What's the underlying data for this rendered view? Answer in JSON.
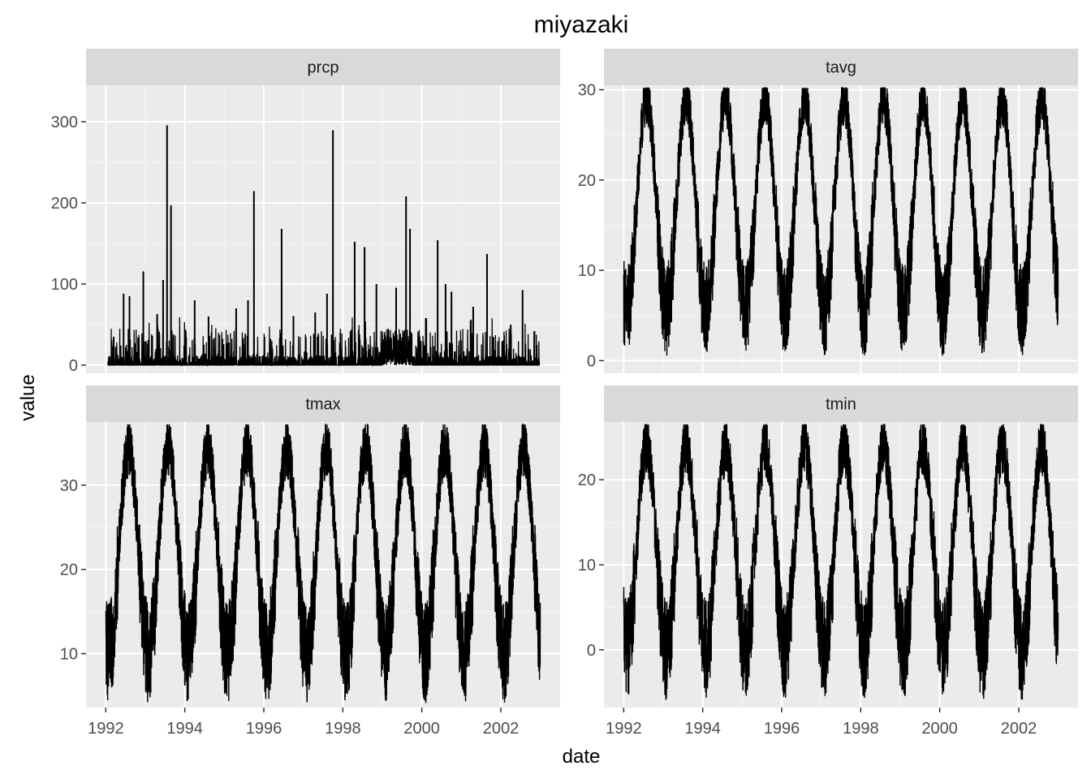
{
  "chart_data": {
    "type": "line",
    "title": "miyazaki",
    "xlabel": "date",
    "ylabel": "value",
    "x_tick_labels": [
      "1992",
      "1994",
      "1996",
      "1998",
      "2000",
      "2002"
    ],
    "x_ticks": [
      1992,
      1994,
      1996,
      1998,
      2000,
      2002
    ],
    "xlim": [
      1991.5,
      2003.5
    ],
    "facets": [
      {
        "name": "prcp",
        "ylim": [
          -10,
          345
        ],
        "y_ticks": [
          0,
          100,
          200,
          300
        ],
        "y_tick_labels": [
          "0",
          "100",
          "200",
          "300"
        ],
        "peaks": [
          [
            1992.2,
            35
          ],
          [
            1992.45,
            88
          ],
          [
            1992.6,
            85
          ],
          [
            1992.95,
            115
          ],
          [
            1993.3,
            63
          ],
          [
            1993.45,
            105
          ],
          [
            1993.55,
            295
          ],
          [
            1993.65,
            197
          ],
          [
            1994.25,
            80
          ],
          [
            1994.6,
            60
          ],
          [
            1995.3,
            70
          ],
          [
            1995.6,
            80
          ],
          [
            1995.75,
            214
          ],
          [
            1996.45,
            168
          ],
          [
            1996.75,
            60
          ],
          [
            1997.3,
            65
          ],
          [
            1997.6,
            88
          ],
          [
            1997.75,
            289
          ],
          [
            1998.3,
            152
          ],
          [
            1998.55,
            145
          ],
          [
            1998.85,
            100
          ],
          [
            1999.35,
            95
          ],
          [
            1999.6,
            208
          ],
          [
            1999.7,
            168
          ],
          [
            2000.4,
            154
          ],
          [
            2000.6,
            100
          ],
          [
            2000.75,
            90
          ],
          [
            2001.3,
            72
          ],
          [
            2001.65,
            137
          ],
          [
            2002.25,
            50
          ],
          [
            2002.55,
            92
          ],
          [
            2002.85,
            42
          ]
        ],
        "dense_from_zero_period": [
          1999.0,
          1999.75
        ]
      },
      {
        "name": "tavg",
        "ylim": [
          -1.4,
          30.5
        ],
        "y_ticks": [
          0,
          10,
          20,
          30
        ],
        "y_tick_labels": [
          "0",
          "10",
          "20",
          "30"
        ],
        "annual_cycle": {
          "summer_peak": 29,
          "winter_trough": 5.5,
          "daily_spread": 5,
          "period_years": [
            1992,
            2003
          ]
        }
      },
      {
        "name": "tmax",
        "ylim": [
          3.6,
          37.5
        ],
        "y_ticks": [
          10,
          20,
          30
        ],
        "y_tick_labels": [
          "10",
          "20",
          "30"
        ],
        "annual_cycle": {
          "summer_peak": 34.5,
          "winter_trough": 10,
          "daily_spread": 6,
          "period_years": [
            1992,
            2003
          ]
        }
      },
      {
        "name": "tmin",
        "ylim": [
          -6.8,
          26.8
        ],
        "y_ticks": [
          0,
          10,
          20
        ],
        "y_tick_labels": [
          "0",
          "10",
          "20"
        ],
        "annual_cycle": {
          "summer_peak": 24,
          "winter_trough": 0,
          "daily_spread": 6,
          "period_years": [
            1992,
            2003
          ]
        }
      }
    ]
  }
}
